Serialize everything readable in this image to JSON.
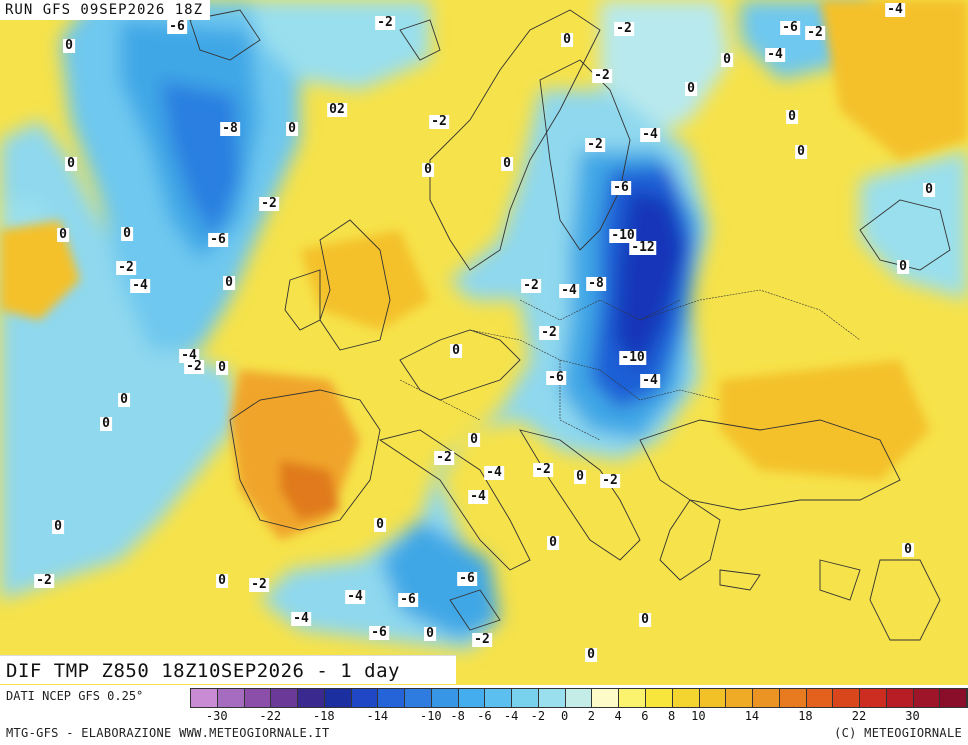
{
  "run_title": "RUN GFS 09SEP2026 18Z",
  "caption": "DIF TMP Z850 18Z10SEP2026 - 1 day",
  "data_source": "DATI NCEP GFS 0.25°",
  "credit_left": "MTG-GFS - ELABORAZIONE WWW.METEOGIORNALE.IT",
  "credit_right": "(C) METEOGIORNALE",
  "colors": {
    "land_warm": "#f6e24a",
    "warm_core": "#f0a52a",
    "hot_core": "#e07a1a",
    "cold_light": "#8fd8ee",
    "cold_mid": "#3fa7e6",
    "cold_deep": "#1e5fd6",
    "cold_core": "#1636b8",
    "coast": "#333333"
  },
  "legend": {
    "swatches": [
      "#c98bd3",
      "#a66cc0",
      "#8b4fa9",
      "#6b3a99",
      "#3a2a8f",
      "#1b2fa0",
      "#1f47c6",
      "#2563d8",
      "#2e7ce0",
      "#3797e6",
      "#44aded",
      "#5bc0ef",
      "#78d2ee",
      "#9adfee",
      "#c5ede8",
      "#fdfcc8",
      "#fbf36e",
      "#f8e63c",
      "#f4d52f",
      "#f2c127",
      "#efab25",
      "#ec9423",
      "#e87b20",
      "#e3611c",
      "#d9461c",
      "#cc2d20",
      "#b81c24",
      "#9e1428",
      "#8a0d2a"
    ],
    "ticks": [
      "-30",
      "-22",
      "-18",
      "-14",
      "-10",
      "-8",
      "-6",
      "-4",
      "-2",
      "0",
      "2",
      "4",
      "6",
      "8",
      "10",
      "14",
      "18",
      "22",
      "30"
    ]
  },
  "isolines": [
    {
      "label": "-6"
    },
    {
      "label": "-2"
    },
    {
      "label": "-2"
    },
    {
      "label": "-4"
    },
    {
      "label": "-6"
    },
    {
      "label": "-2"
    },
    {
      "label": "-4"
    },
    {
      "label": "0"
    },
    {
      "label": "0"
    },
    {
      "label": "-8"
    },
    {
      "label": "0"
    },
    {
      "label": "02"
    },
    {
      "label": "-2"
    },
    {
      "label": "-2"
    },
    {
      "label": "0"
    },
    {
      "label": "-2"
    },
    {
      "label": "0"
    },
    {
      "label": "-4"
    },
    {
      "label": "0"
    },
    {
      "label": "0"
    },
    {
      "label": "0"
    },
    {
      "label": "0"
    },
    {
      "label": "0"
    },
    {
      "label": "-2"
    },
    {
      "label": "-6"
    },
    {
      "label": "0"
    },
    {
      "label": "-6"
    },
    {
      "label": "-2"
    },
    {
      "label": "-4"
    },
    {
      "label": "0"
    },
    {
      "label": "-10"
    },
    {
      "label": "-12"
    },
    {
      "label": "-4"
    },
    {
      "label": "-8"
    },
    {
      "label": "-2"
    },
    {
      "label": "0"
    },
    {
      "label": "-4"
    },
    {
      "label": "-2"
    },
    {
      "label": "0"
    },
    {
      "label": "-2"
    },
    {
      "label": "0"
    },
    {
      "label": "0"
    },
    {
      "label": "-10"
    },
    {
      "label": "-6"
    },
    {
      "label": "-4"
    },
    {
      "label": "0"
    },
    {
      "label": "0"
    },
    {
      "label": "-2"
    },
    {
      "label": "-4"
    },
    {
      "label": "-4"
    },
    {
      "label": "-2"
    },
    {
      "label": "0"
    },
    {
      "label": "-2"
    },
    {
      "label": "0"
    },
    {
      "label": "0"
    },
    {
      "label": "0"
    },
    {
      "label": "-2"
    },
    {
      "label": "0"
    },
    {
      "label": "-6"
    },
    {
      "label": "-2"
    },
    {
      "label": "-4"
    },
    {
      "label": "-6"
    },
    {
      "label": "-4"
    },
    {
      "label": "-6"
    },
    {
      "label": "0"
    },
    {
      "label": "-2"
    },
    {
      "label": "0"
    },
    {
      "label": "0"
    },
    {
      "label": "0"
    },
    {
      "label": "0"
    },
    {
      "label": "0"
    }
  ]
}
